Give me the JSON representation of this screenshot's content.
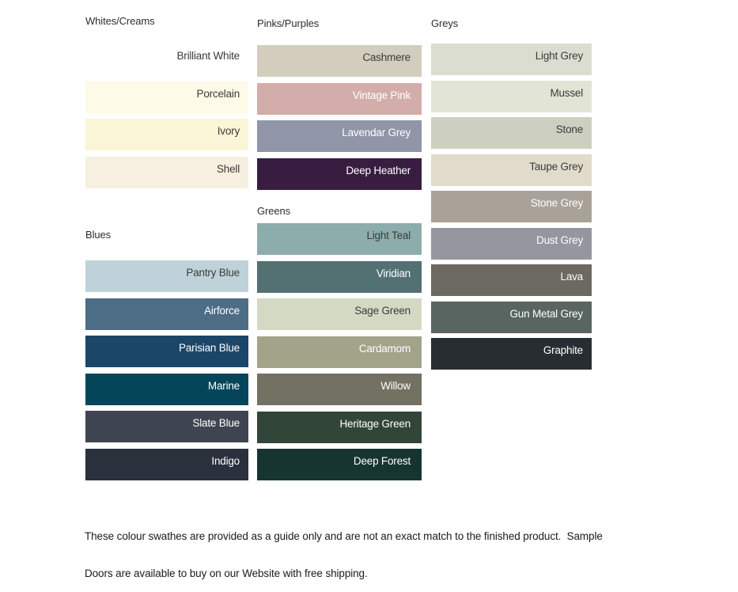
{
  "page": {
    "background": "#ffffff",
    "label_color_dark": "#3b3b3b",
    "label_color_light": "#ffffff"
  },
  "columns": [
    {
      "groups": [
        {
          "header": "Whites/Creams",
          "swatches": [
            {
              "label": "Brilliant White",
              "color": "#ffffff",
              "text": "dark"
            },
            {
              "label": "Porcelain",
              "color": "#fdfae7",
              "text": "dark"
            },
            {
              "label": "Ivory",
              "color": "#fbf5d7",
              "text": "dark"
            },
            {
              "label": "Shell",
              "color": "#f7efdf",
              "text": "dark"
            }
          ]
        },
        {
          "header": "Blues",
          "swatches": [
            {
              "label": "Pantry Blue",
              "color": "#bfd2d9",
              "text": "dark"
            },
            {
              "label": "Airforce",
              "color": "#4d6c85",
              "text": "light"
            },
            {
              "label": "Parisian Blue",
              "color": "#1c4667",
              "text": "light"
            },
            {
              "label": "Marine",
              "color": "#05455a",
              "text": "light"
            },
            {
              "label": "Slate Blue",
              "color": "#3e4450",
              "text": "light"
            },
            {
              "label": "Indigo",
              "color": "#2a303c",
              "text": "light"
            }
          ]
        }
      ]
    },
    {
      "groups": [
        {
          "header": "Pinks/Purples",
          "swatches": [
            {
              "label": "Cashmere",
              "color": "#d2cdbd",
              "text": "dark"
            },
            {
              "label": "Vintage Pink",
              "color": "#d2ada9",
              "text": "light"
            },
            {
              "label": "Lavendar Grey",
              "color": "#9095a7",
              "text": "light"
            },
            {
              "label": "Deep Heather",
              "color": "#391d41",
              "text": "light"
            }
          ]
        },
        {
          "header": "Greens",
          "swatches": [
            {
              "label": "Light Teal",
              "color": "#8cadab",
              "text": "dark"
            },
            {
              "label": "Viridian",
              "color": "#537073",
              "text": "light"
            },
            {
              "label": "Sage Green",
              "color": "#d4d9c4",
              "text": "dark"
            },
            {
              "label": "Cardamom",
              "color": "#a1a489",
              "text": "light"
            },
            {
              "label": "Willow",
              "color": "#727162",
              "text": "light"
            },
            {
              "label": "Heritage Green",
              "color": "#324539",
              "text": "light"
            },
            {
              "label": "Deep Forest",
              "color": "#173530",
              "text": "light"
            }
          ]
        }
      ]
    },
    {
      "groups": [
        {
          "header": "Greys",
          "swatches": [
            {
              "label": "Light Grey",
              "color": "#dcddd1",
              "text": "dark"
            },
            {
              "label": "Mussel",
              "color": "#e2e4d5",
              "text": "dark"
            },
            {
              "label": "Stone",
              "color": "#cdd0c1",
              "text": "dark"
            },
            {
              "label": "Taupe Grey",
              "color": "#e1dbcb",
              "text": "dark"
            },
            {
              "label": "Stone Grey",
              "color": "#a9a299",
              "text": "light"
            },
            {
              "label": "Dust Grey",
              "color": "#95969f",
              "text": "light"
            },
            {
              "label": "Lava",
              "color": "#6b6960",
              "text": "light"
            },
            {
              "label": "Gun Metal Grey",
              "color": "#586560",
              "text": "light"
            },
            {
              "label": "Graphite",
              "color": "#282d31",
              "text": "light"
            }
          ]
        }
      ]
    }
  ],
  "footer": {
    "lines": [
      "These colour swathes are provided as a guide only and are not an exact match to the finished product.  Sample",
      "Doors are available to buy on our Website with free shipping."
    ]
  }
}
